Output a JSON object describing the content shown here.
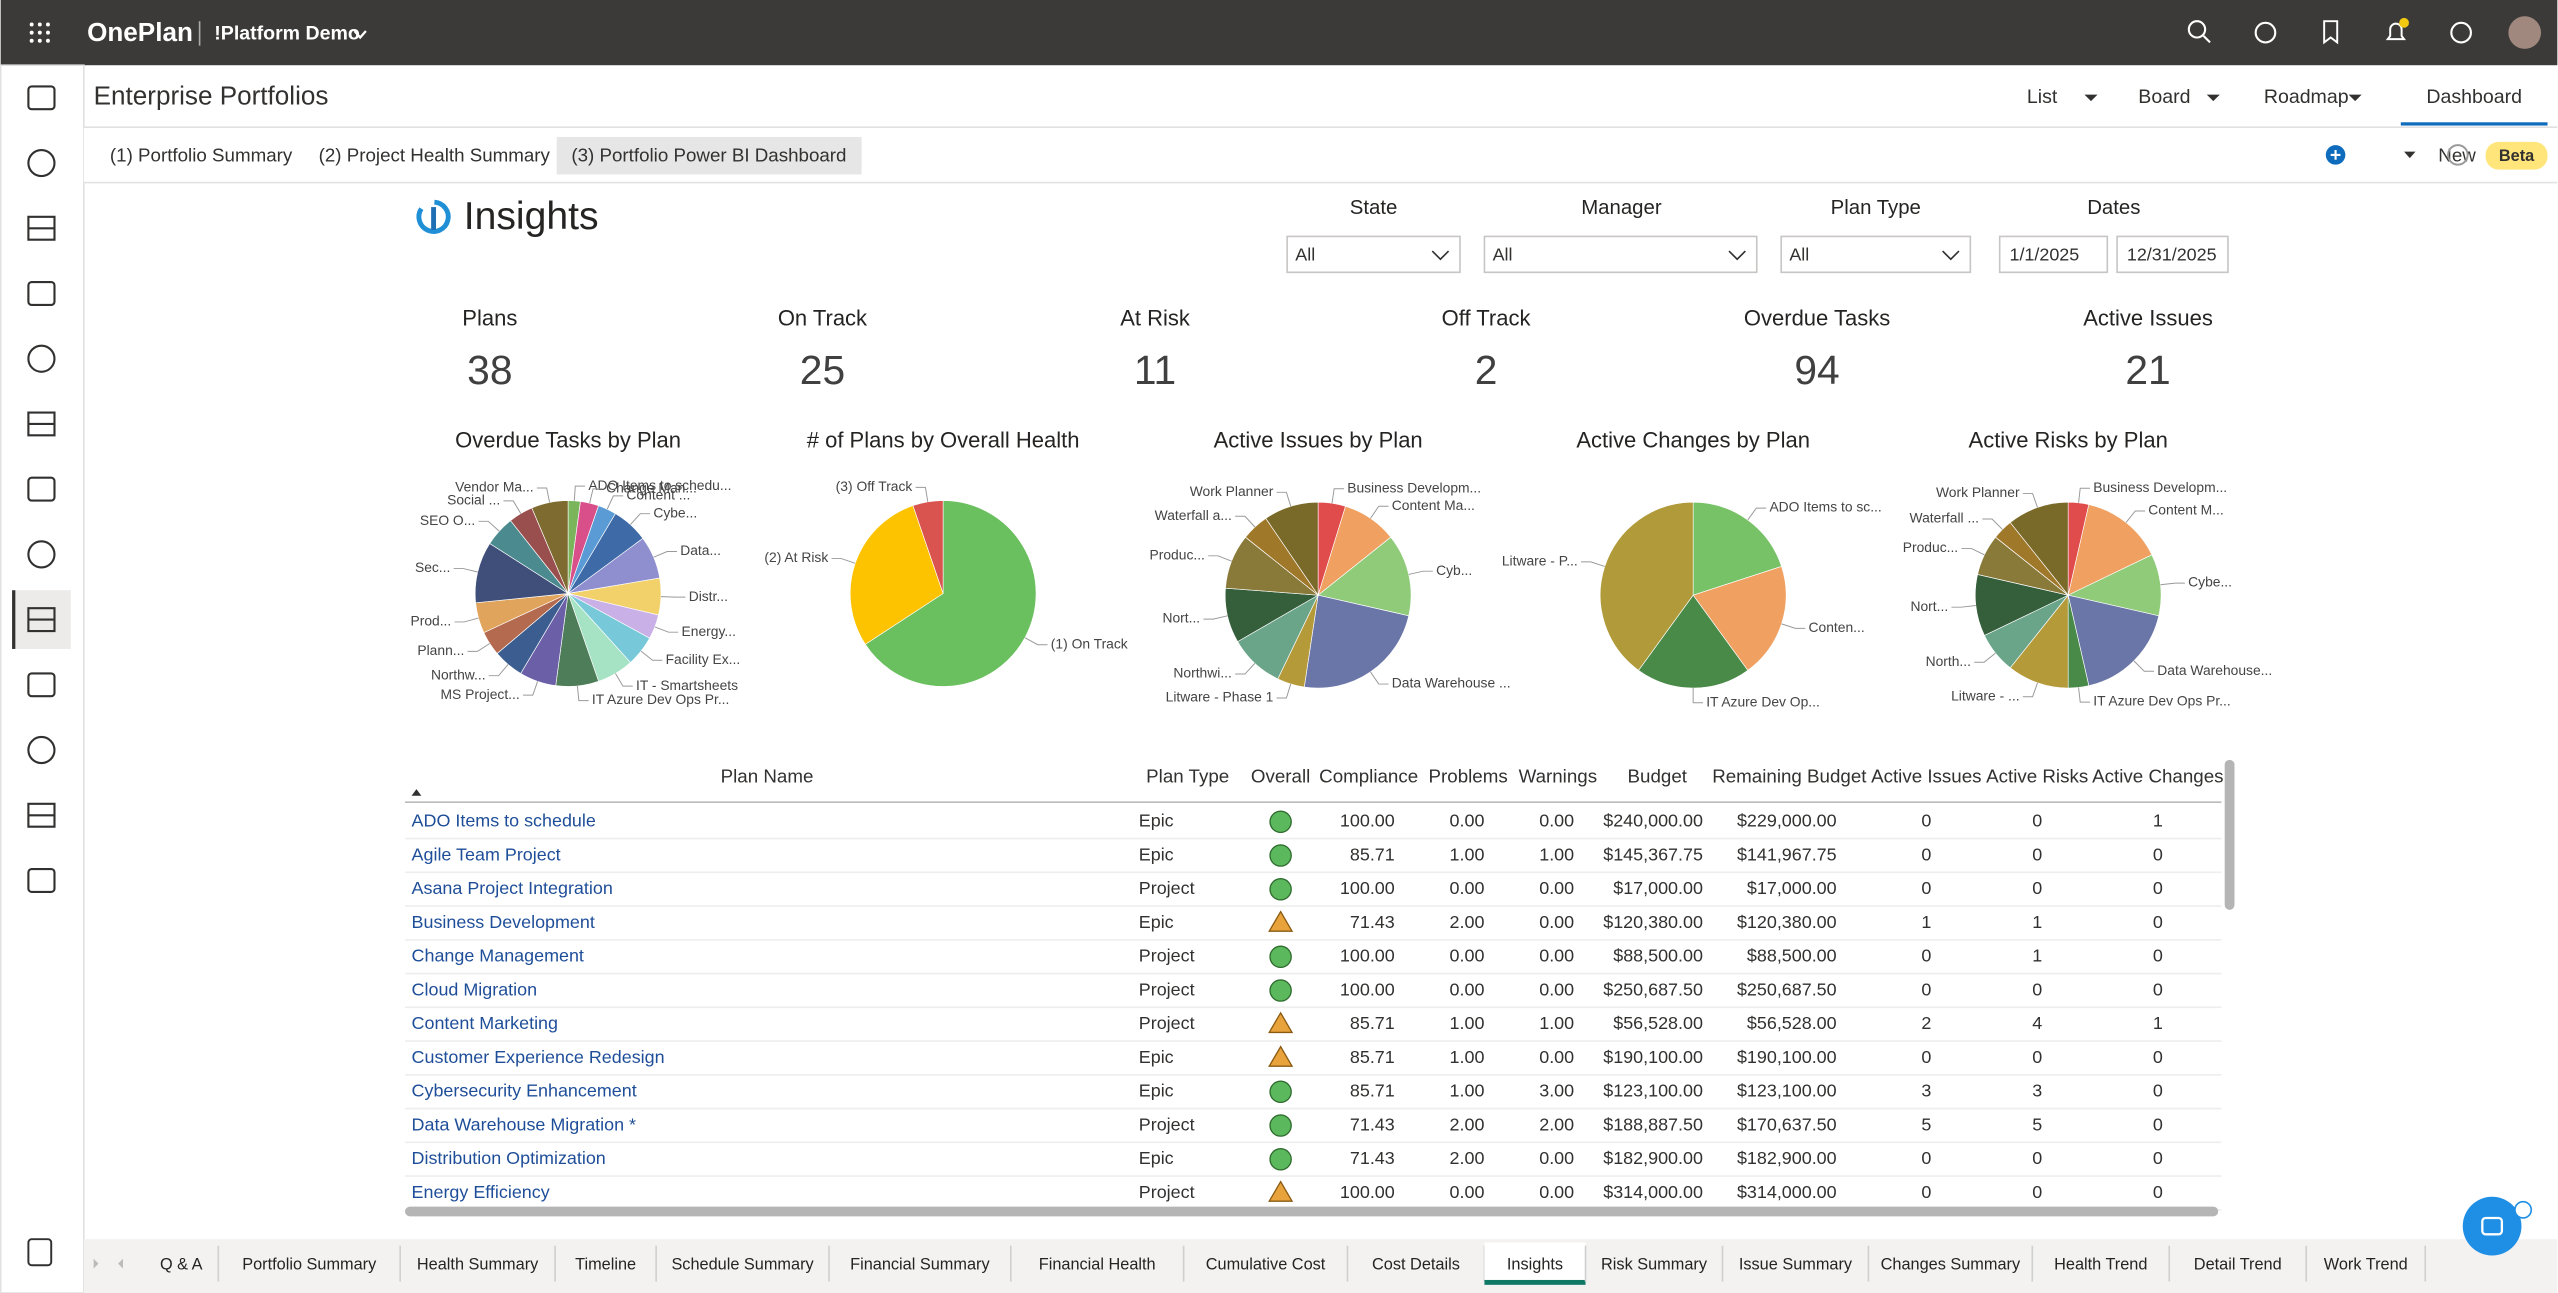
{
  "app": {
    "brand": "OnePlan",
    "workspace": "!Platform Demo"
  },
  "header": {
    "title": "Enterprise Portfolios",
    "views": [
      "List",
      "Board",
      "Roadmap",
      "Dashboard"
    ],
    "active_view": 3
  },
  "subtabs": {
    "items": [
      "(1) Portfolio Summary",
      "(2) Project Health Summary",
      "(3) Portfolio Power BI Dashboard"
    ],
    "selected": 2,
    "new_button": "New",
    "badge": "Beta"
  },
  "report": {
    "title": "Insights",
    "filters": [
      {
        "label": "State",
        "value": "All"
      },
      {
        "label": "Manager",
        "value": "All"
      },
      {
        "label": "Plan Type",
        "value": "All"
      }
    ],
    "dates_label": "Dates",
    "dates": [
      "1/1/2025",
      "12/31/2025"
    ]
  },
  "kpis": [
    {
      "label": "Plans",
      "value": 38
    },
    {
      "label": "On Track",
      "value": 25
    },
    {
      "label": "At Risk",
      "value": 11
    },
    {
      "label": "Off Track",
      "value": 2
    },
    {
      "label": "Overdue Tasks",
      "value": 94
    },
    {
      "label": "Active Issues",
      "value": 21
    }
  ],
  "chart_data": [
    {
      "type": "pie",
      "title": "Overdue Tasks by Plan",
      "categories": [
        "ADO Items to schedu...",
        "Change Man...",
        "Content ...",
        "Cybe...",
        "Data...",
        "Distr...",
        "Energy...",
        "Facility Ex...",
        "IT - Smartsheets",
        "IT Azure Dev Ops Pr...",
        "MS Project...",
        "Northw...",
        "Plann...",
        "Prod...",
        "Sec...",
        "SEO O...",
        "Social ...",
        "Vendor Ma..."
      ],
      "values": [
        2,
        3,
        3,
        6,
        7,
        6,
        4,
        5,
        6,
        7,
        6,
        5,
        4,
        5,
        10,
        5,
        4,
        6
      ],
      "colors": [
        "#7ab55c",
        "#d94f8a",
        "#5b9bd5",
        "#3e6aa8",
        "#8f8fd0",
        "#f2d16b",
        "#c9b0e6",
        "#77c9d9",
        "#a6e3c4",
        "#4e7d5a",
        "#6b5fa8",
        "#3b5d8f",
        "#b36a4e",
        "#e0a45c",
        "#3f4f7a",
        "#4b8b8f",
        "#9a4f4f",
        "#7d6b2f"
      ]
    },
    {
      "type": "pie",
      "title": "# of Plans by Overall Health",
      "categories": [
        "(1) On Track",
        "(2) At Risk",
        "(3) Off Track"
      ],
      "values": [
        25,
        11,
        2
      ],
      "colors": [
        "#6abf5e",
        "#fdc300",
        "#d9534f"
      ]
    },
    {
      "type": "pie",
      "title": "Active Issues by Plan",
      "categories": [
        "Business Developm...",
        "Content Ma...",
        "Cyb...",
        "Data Warehouse ...",
        "Litware - Phase 1",
        "Northwi...",
        "Nort...",
        "Produc...",
        "Waterfall a...",
        "Work Planner"
      ],
      "values": [
        1,
        2,
        3,
        5,
        1,
        2,
        2,
        2,
        1,
        2
      ],
      "colors": [
        "#e04b4b",
        "#f0a060",
        "#8fcb78",
        "#6a75a8",
        "#b59a3a",
        "#6aa58a",
        "#355e3b",
        "#8a7a3a",
        "#a0782a",
        "#7a6a2a"
      ]
    },
    {
      "type": "pie",
      "title": "Active Changes by Plan",
      "categories": [
        "ADO Items to sc...",
        "Conten...",
        "IT Azure Dev Op...",
        "Litware - P..."
      ],
      "values": [
        1,
        1,
        1,
        2
      ],
      "colors": [
        "#77c267",
        "#f0a060",
        "#4a8a48",
        "#b09a3a"
      ]
    },
    {
      "type": "pie",
      "title": "Active Risks by Plan",
      "categories": [
        "Business Developm...",
        "Content M...",
        "Cybe...",
        "Data Warehouse...",
        "IT Azure Dev Ops Pr...",
        "Litware - ...",
        "North...",
        "Nort...",
        "Produc...",
        "Waterfall ...",
        "Work Planner"
      ],
      "values": [
        1,
        4,
        3,
        5,
        1,
        3,
        2,
        3,
        2,
        1,
        3
      ],
      "colors": [
        "#e04b4b",
        "#f0a060",
        "#8fcb78",
        "#6a75a8",
        "#4a8a48",
        "#b59a3a",
        "#6aa58a",
        "#355e3b",
        "#8a7a3a",
        "#a0782a",
        "#7a6a2a"
      ]
    }
  ],
  "table": {
    "columns": [
      "Plan Name",
      "Plan Type",
      "Overall",
      "Compliance",
      "Problems",
      "Warnings",
      "Budget",
      "Remaining Budget",
      "Active Issues",
      "Active Risks",
      "Active Changes"
    ],
    "rows": [
      [
        "ADO Items to schedule",
        "Epic",
        "100.00",
        "0.00",
        "0.00",
        "$240,000.00",
        "$229,000.00",
        "0",
        "0",
        "1"
      ],
      [
        "Agile Team Project",
        "Epic",
        "85.71",
        "1.00",
        "1.00",
        "$145,367.75",
        "$141,967.75",
        "0",
        "0",
        "0"
      ],
      [
        "Asana Project Integration",
        "Project",
        "100.00",
        "0.00",
        "0.00",
        "$17,000.00",
        "$17,000.00",
        "0",
        "0",
        "0"
      ],
      [
        "Business Development",
        "Epic",
        "71.43",
        "2.00",
        "0.00",
        "$120,380.00",
        "$120,380.00",
        "1",
        "1",
        "0"
      ],
      [
        "Change Management",
        "Project",
        "100.00",
        "0.00",
        "0.00",
        "$88,500.00",
        "$88,500.00",
        "0",
        "1",
        "0"
      ],
      [
        "Cloud Migration",
        "Project",
        "100.00",
        "0.00",
        "0.00",
        "$250,687.50",
        "$250,687.50",
        "0",
        "0",
        "0"
      ],
      [
        "Content Marketing",
        "Project",
        "85.71",
        "1.00",
        "1.00",
        "$56,528.00",
        "$56,528.00",
        "2",
        "4",
        "1"
      ],
      [
        "Customer Experience Redesign",
        "Epic",
        "85.71",
        "1.00",
        "0.00",
        "$190,100.00",
        "$190,100.00",
        "0",
        "0",
        "0"
      ],
      [
        "Cybersecurity Enhancement",
        "Epic",
        "85.71",
        "1.00",
        "3.00",
        "$123,100.00",
        "$123,100.00",
        "3",
        "3",
        "0"
      ],
      [
        "Data Warehouse Migration *",
        "Project",
        "71.43",
        "2.00",
        "2.00",
        "$188,887.50",
        "$170,637.50",
        "5",
        "5",
        "0"
      ],
      [
        "Distribution Optimization",
        "Epic",
        "71.43",
        "2.00",
        "0.00",
        "$182,900.00",
        "$182,900.00",
        "0",
        "0",
        "0"
      ],
      [
        "Energy Efficiency",
        "Project",
        "100.00",
        "0.00",
        "0.00",
        "$314,000.00",
        "$314,000.00",
        "0",
        "0",
        "0"
      ]
    ],
    "overall_icons": [
      "circle",
      "circle",
      "circle",
      "triangle",
      "circle",
      "circle",
      "triangle",
      "triangle",
      "circle",
      "circle",
      "circle",
      "triangle"
    ]
  },
  "bottom_tabs": {
    "items": [
      "Q & A",
      "Portfolio Summary",
      "Health Summary",
      "Timeline",
      "Schedule Summary",
      "Financial Summary",
      "Financial Health",
      "Cumulative Cost",
      "Cost Details",
      "Insights",
      "Risk Summary",
      "Issue Summary",
      "Changes Summary",
      "Health Trend",
      "Detail Trend",
      "Work Trend"
    ],
    "selected": 9
  }
}
